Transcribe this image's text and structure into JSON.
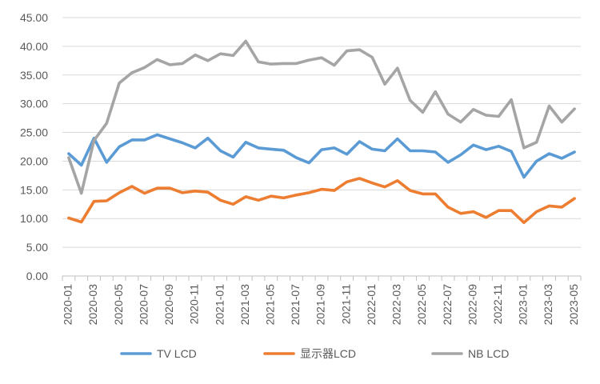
{
  "chart_data": {
    "type": "line",
    "title": "",
    "xlabel": "",
    "ylabel": "",
    "ylim": [
      0,
      45
    ],
    "y_ticks": [
      "0.00",
      "5.00",
      "10.00",
      "15.00",
      "20.00",
      "25.00",
      "30.00",
      "35.00",
      "40.00",
      "45.00"
    ],
    "x": [
      "2020-01",
      "2020-02",
      "2020-03",
      "2020-04",
      "2020-05",
      "2020-06",
      "2020-07",
      "2020-08",
      "2020-09",
      "2020-10",
      "2020-11",
      "2020-12",
      "2021-01",
      "2021-02",
      "2021-03",
      "2021-04",
      "2021-05",
      "2021-06",
      "2021-07",
      "2021-08",
      "2021-09",
      "2021-10",
      "2021-11",
      "2021-12",
      "2022-01",
      "2022-02",
      "2022-03",
      "2022-04",
      "2022-05",
      "2022-06",
      "2022-07",
      "2022-08",
      "2022-09",
      "2022-10",
      "2022-11",
      "2022-12",
      "2023-01",
      "2023-02",
      "2023-03",
      "2023-04",
      "2023-05"
    ],
    "x_tick_labels": [
      "2020-01",
      "2020-03",
      "2020-05",
      "2020-07",
      "2020-09",
      "2020-11",
      "2021-01",
      "2021-03",
      "2021-05",
      "2021-07",
      "2021-09",
      "2021-11",
      "2022-01",
      "2022-03",
      "2022-05",
      "2022-07",
      "2022-09",
      "2022-11",
      "2023-01",
      "2023-03",
      "2023-05"
    ],
    "grid": true,
    "legend_position": "bottom",
    "series": [
      {
        "name": "TV LCD",
        "color": "#5b9bd5",
        "values": [
          21.3,
          19.3,
          24.0,
          19.8,
          22.5,
          23.7,
          23.7,
          24.6,
          23.9,
          23.2,
          22.3,
          24.0,
          21.8,
          20.7,
          23.3,
          22.3,
          22.1,
          21.9,
          20.6,
          19.7,
          22.0,
          22.3,
          21.2,
          23.4,
          22.1,
          21.8,
          23.9,
          21.8,
          21.8,
          21.6,
          19.8,
          21.1,
          22.8,
          22.0,
          22.6,
          21.7,
          17.2,
          20.0,
          21.3,
          20.5,
          21.6
        ]
      },
      {
        "name": "显示器LCD",
        "color": "#ed7d31",
        "values": [
          10.1,
          9.4,
          13.0,
          13.1,
          14.5,
          15.6,
          14.4,
          15.3,
          15.3,
          14.5,
          14.8,
          14.6,
          13.2,
          12.5,
          13.8,
          13.2,
          13.9,
          13.6,
          14.1,
          14.5,
          15.1,
          14.9,
          16.4,
          17.0,
          16.2,
          15.5,
          16.6,
          14.9,
          14.3,
          14.3,
          12.0,
          10.9,
          11.2,
          10.2,
          11.4,
          11.4,
          9.3,
          11.2,
          12.2,
          12.0,
          13.5
        ]
      },
      {
        "name": "NB LCD",
        "color": "#a5a5a5",
        "values": [
          20.6,
          14.4,
          23.6,
          26.6,
          33.6,
          35.4,
          36.3,
          37.7,
          36.8,
          37.0,
          38.5,
          37.5,
          38.7,
          38.4,
          40.9,
          37.3,
          36.9,
          37.0,
          37.0,
          37.6,
          38.0,
          36.7,
          39.2,
          39.4,
          38.1,
          33.4,
          36.2,
          30.6,
          28.5,
          32.1,
          28.2,
          26.8,
          29.0,
          28.0,
          27.8,
          30.7,
          22.3,
          23.3,
          29.6,
          26.8,
          29.1
        ]
      }
    ]
  }
}
